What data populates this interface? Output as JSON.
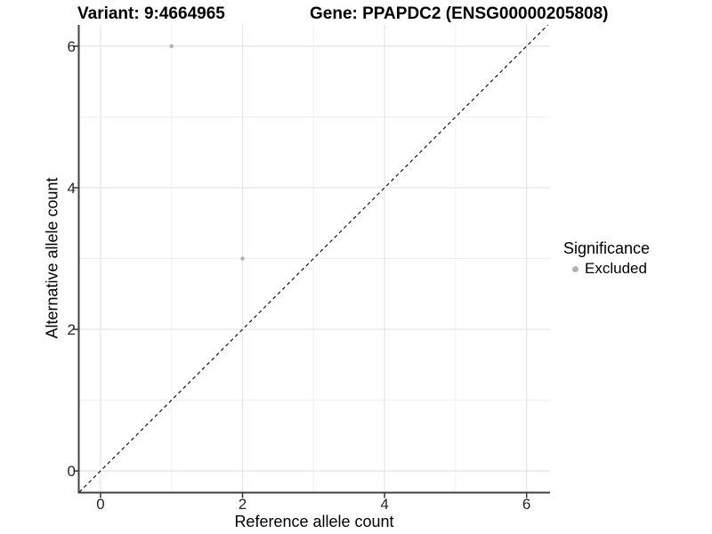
{
  "chart_data": {
    "type": "scatter",
    "titles": {
      "left": "Variant: 9:4664965",
      "right": "Gene: PPAPDC2 (ENSG00000205808)"
    },
    "xlabel": "Reference allele count",
    "ylabel": "Alternative allele count",
    "xlim": [
      -0.3,
      6.33
    ],
    "ylim": [
      -0.3,
      6.3
    ],
    "x_ticks": [
      0,
      2,
      4,
      6
    ],
    "y_ticks": [
      0,
      2,
      4,
      6
    ],
    "x_minor_ticks": [
      1,
      3,
      5
    ],
    "y_minor_ticks": [
      1,
      3,
      5
    ],
    "grid": true,
    "legend_position": "right",
    "identity_line": {
      "equation": "y = x",
      "style": "dashed",
      "color": "#000000"
    },
    "series": [
      {
        "name": "Excluded",
        "color": "#b3b3b3",
        "points": [
          {
            "x": 1,
            "y": 6
          },
          {
            "x": 2,
            "y": 3
          }
        ]
      }
    ],
    "legend": {
      "title": "Significance",
      "items": [
        {
          "label": "Excluded",
          "color": "#b3b3b3"
        }
      ]
    },
    "colors": {
      "background": "#ffffff",
      "grid_major": "#e4e4e4",
      "grid_minor": "#efefef",
      "axis_line": "#404040",
      "tick_mark": "#333333",
      "tick_text": "#262626",
      "point": "#b3b3b3"
    }
  }
}
